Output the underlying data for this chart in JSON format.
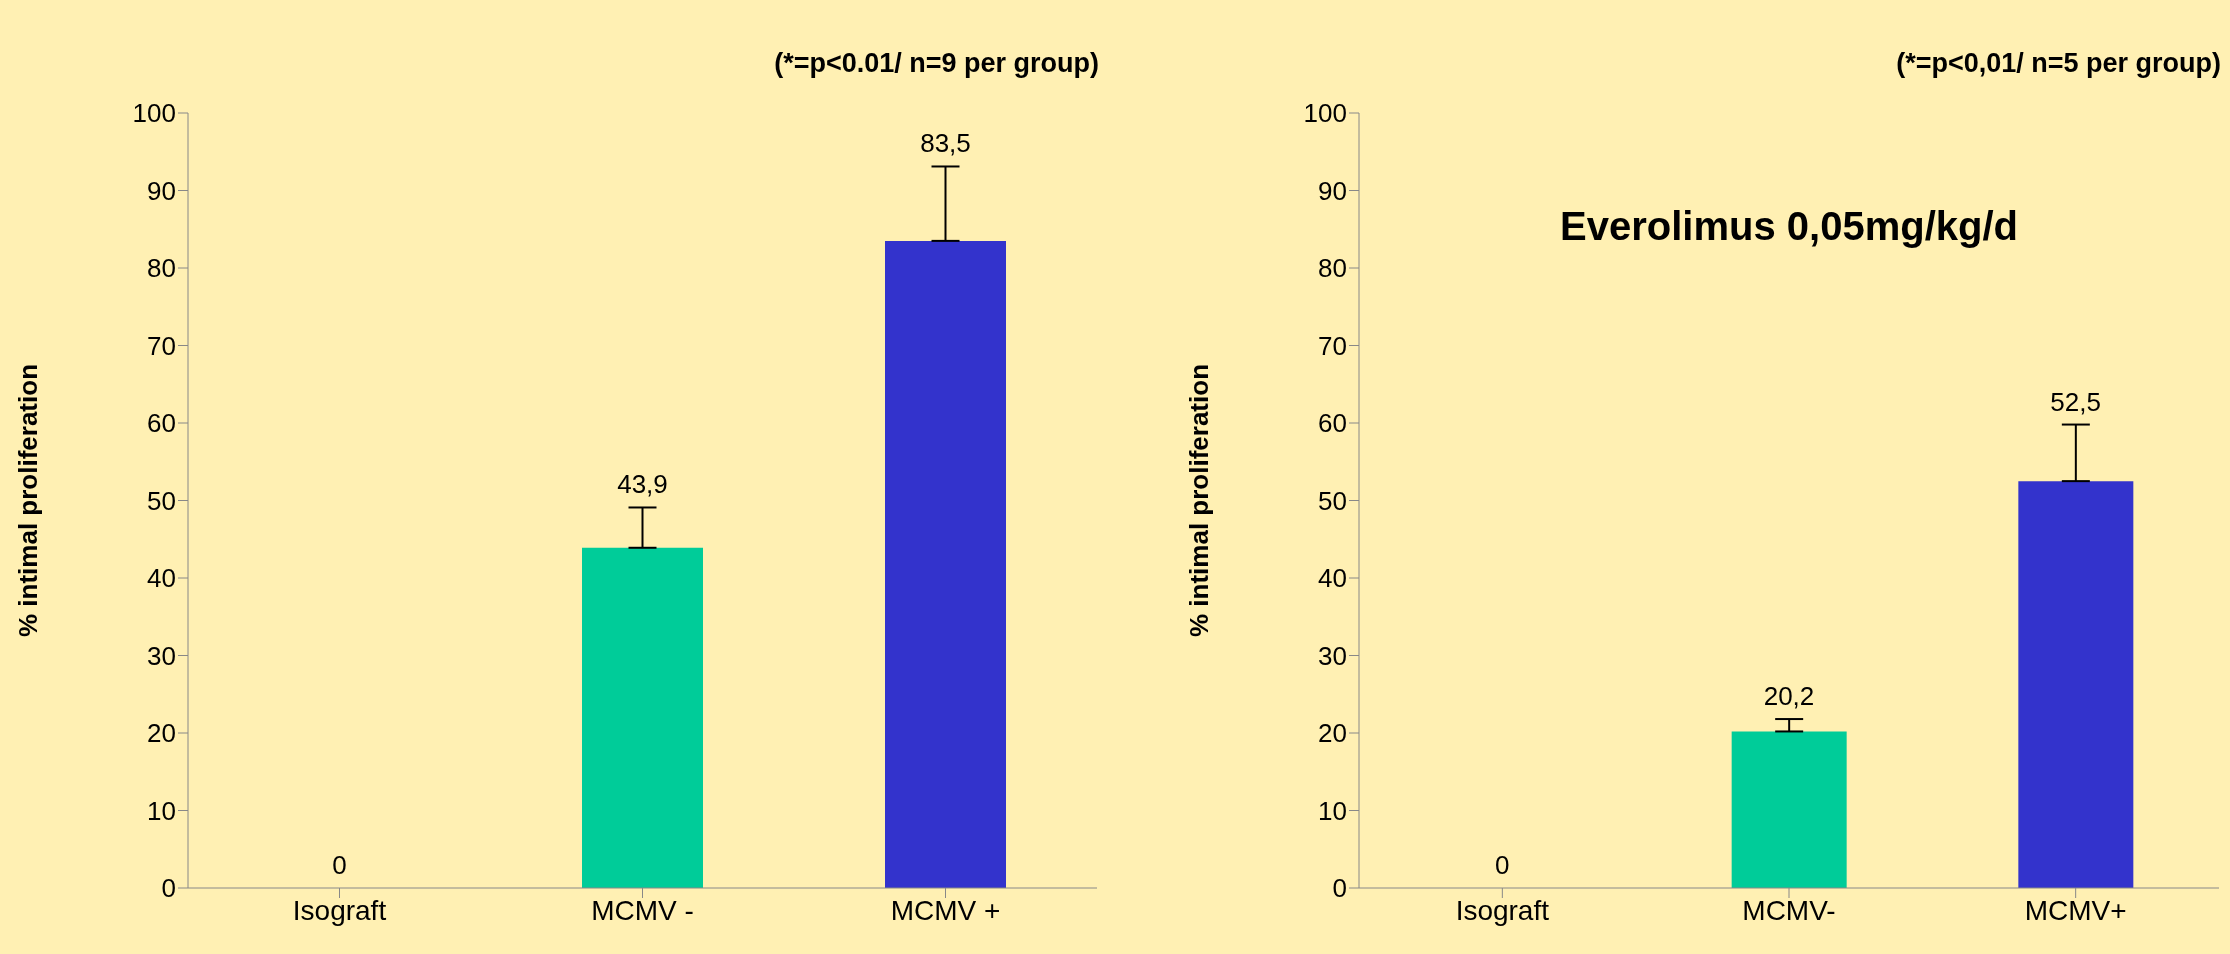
{
  "chart_data": [
    {
      "type": "bar",
      "annotations": [
        "(*=p<0.01/ n=9 per group)"
      ],
      "ylabel": "% intimal proliferation",
      "categories": [
        "Isograft",
        "MCMV -",
        "MCMV +"
      ],
      "values": [
        0,
        43.9,
        83.5
      ],
      "colors": [
        "#00cc99",
        "#00cc99",
        "#3333cc"
      ],
      "errors": [
        null,
        [
          43.9,
          49.1
        ],
        [
          83.5,
          93.1
        ]
      ],
      "value_labels": [
        "0",
        "43,9",
        "83,5"
      ],
      "ylim": [
        0,
        100
      ],
      "yticks": [
        0,
        10,
        20,
        30,
        40,
        50,
        60,
        70,
        80,
        90,
        100
      ]
    },
    {
      "type": "bar",
      "title": "Everolimus 0,05mg/kg/d",
      "annotations": [
        "(*=p<0,01/ n=5 per group)"
      ],
      "ylabel": "% intimal proliferation",
      "categories": [
        "Isograft",
        "MCMV-",
        "MCMV+"
      ],
      "values": [
        0,
        20.2,
        52.5
      ],
      "colors": [
        "#00cc99",
        "#00cc99",
        "#3333cc"
      ],
      "errors": [
        null,
        [
          20.2,
          21.8
        ],
        [
          52.5,
          59.8
        ]
      ],
      "value_labels": [
        "0",
        "20,2",
        "52,5"
      ],
      "ylim": [
        0,
        100
      ],
      "yticks": [
        0,
        10,
        20,
        30,
        40,
        50,
        60,
        70,
        80,
        90,
        100
      ]
    }
  ]
}
